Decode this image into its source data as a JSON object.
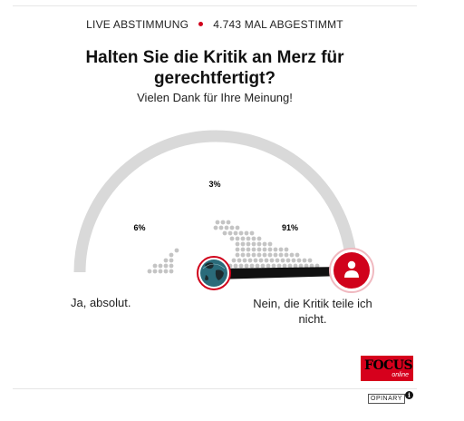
{
  "poll": {
    "live_label": "LIVE ABSTIMMUNG",
    "votes_label": "4.743 MAL ABGESTIMMT",
    "question": "Halten Sie die Kritik an Merz für gerechtfertigt?",
    "thanks": "Vielen Dank für Ihre Meinung!",
    "option_left": "Ja, absolut.",
    "option_right": "Nein, die Kritik teile ich nicht.",
    "results": [
      {
        "label": "6%",
        "value": 6
      },
      {
        "label": "3%",
        "value": 3
      },
      {
        "label": "91%",
        "value": 91
      }
    ],
    "user_position": 0.0
  },
  "branding": {
    "logo_text": "FOCUS",
    "logo_sub": "online",
    "provider": "OPINARY",
    "info_glyph": "i"
  },
  "icons": {
    "globe": "globe-icon",
    "user": "user-icon"
  },
  "colors": {
    "accent": "#d0021b",
    "track": "#d9d9d9",
    "dots": "#c4c4c4",
    "needle": "#111111",
    "globe_sea": "#2a6b7a"
  }
}
